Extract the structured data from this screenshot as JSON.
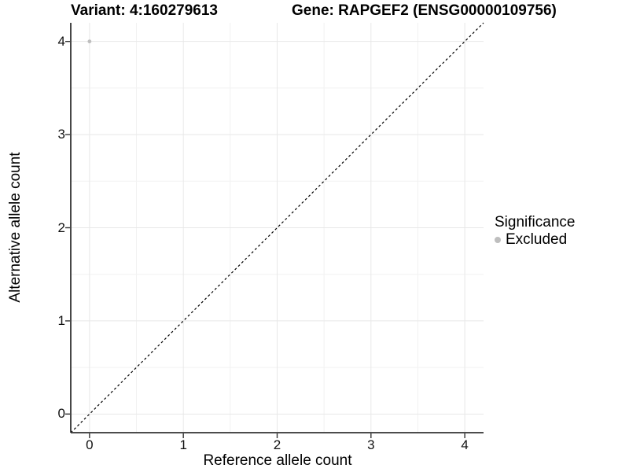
{
  "header": {
    "variant_title": "Variant: 4:160279613",
    "gene_title": "Gene: RAPGEF2 (ENSG00000109756)"
  },
  "chart_data": {
    "type": "scatter",
    "xlabel": "Reference allele count",
    "ylabel": "Alternative allele count",
    "xlim": [
      -0.2,
      4.2
    ],
    "ylim": [
      -0.2,
      4.2
    ],
    "x_ticks": [
      0,
      1,
      2,
      3,
      4
    ],
    "y_ticks": [
      0,
      1,
      2,
      3,
      4
    ],
    "minor_gridlines": [
      0.5,
      1.5,
      2.5,
      3.5
    ],
    "grid": "major+minor",
    "points": [
      {
        "x": 0,
        "y": 4,
        "significance": "Excluded"
      }
    ],
    "identity_line": {
      "style": "dashed",
      "slope": 1,
      "intercept": 0
    },
    "legend": {
      "position": "right",
      "title": "Significance",
      "entries": [
        {
          "label": "Excluded",
          "color": "#bebebe"
        }
      ]
    },
    "colors": {
      "point": "#bebebe",
      "grid_major": "#e8e8e8",
      "grid_minor": "#f2f2f2",
      "axis_line": "#333333",
      "tick_mark": "#333333",
      "dashed_line": "#000000",
      "text": "#000000"
    }
  }
}
